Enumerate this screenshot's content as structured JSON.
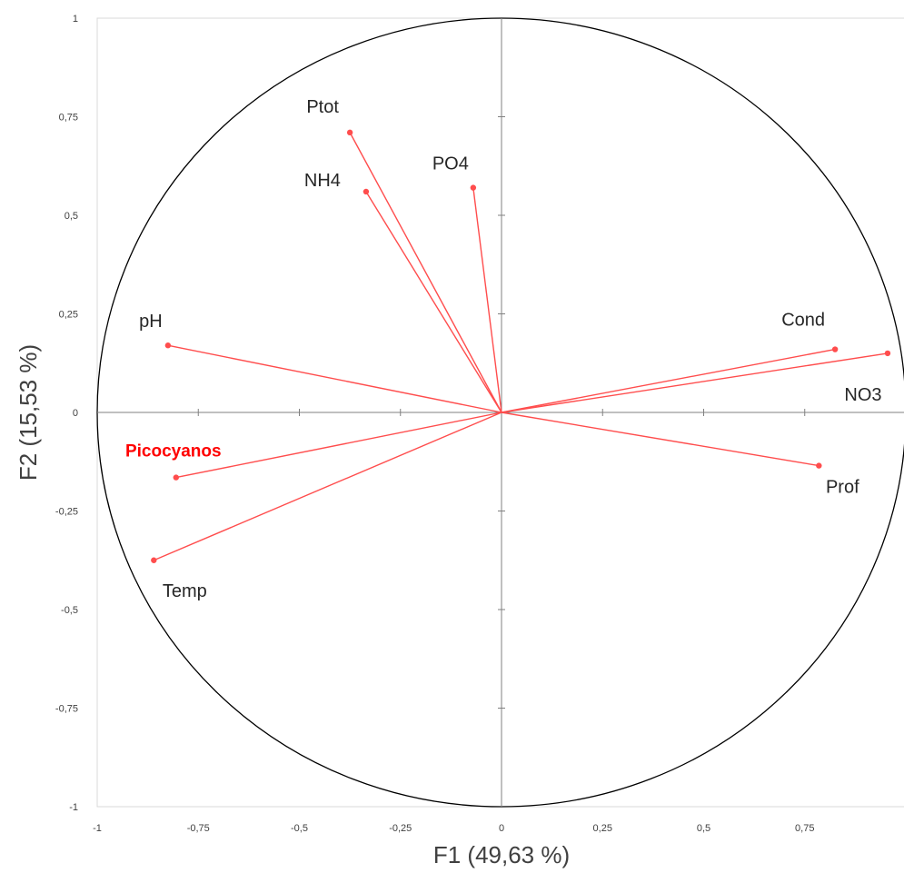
{
  "chart_data": {
    "type": "scatter",
    "subtype": "correlation-circle",
    "title": "",
    "xlabel": "F1 (49,63 %)",
    "ylabel": "F2 (15,53 %)",
    "xlim": [
      -1,
      1
    ],
    "ylim": [
      -1,
      1
    ],
    "x_ticks": [
      "-1",
      "-0,75",
      "-0,5",
      "-0,25",
      "0",
      "0,25",
      "0,5",
      "0,75"
    ],
    "y_ticks": [
      "1",
      "0,75",
      "0,5",
      "0,25",
      "0",
      "-0,25",
      "-0,5",
      "-0,75",
      "-1"
    ],
    "grid": false,
    "unit_circle": true,
    "vector_color": "#ff4d4d",
    "highlight_color": "#ff0000",
    "points": [
      {
        "name": "Ptot",
        "x": -0.375,
        "y": 0.71
      },
      {
        "name": "NH4",
        "x": -0.335,
        "y": 0.56
      },
      {
        "name": "PO4",
        "x": -0.07,
        "y": 0.57
      },
      {
        "name": "pH",
        "x": -0.825,
        "y": 0.17
      },
      {
        "name": "Cond",
        "x": 0.825,
        "y": 0.16
      },
      {
        "name": "NO3",
        "x": 0.955,
        "y": 0.15
      },
      {
        "name": "Prof",
        "x": 0.785,
        "y": -0.135
      },
      {
        "name": "Picocyanos",
        "x": -0.805,
        "y": -0.165,
        "highlight": true
      },
      {
        "name": "Temp",
        "x": -0.86,
        "y": -0.375
      }
    ]
  }
}
